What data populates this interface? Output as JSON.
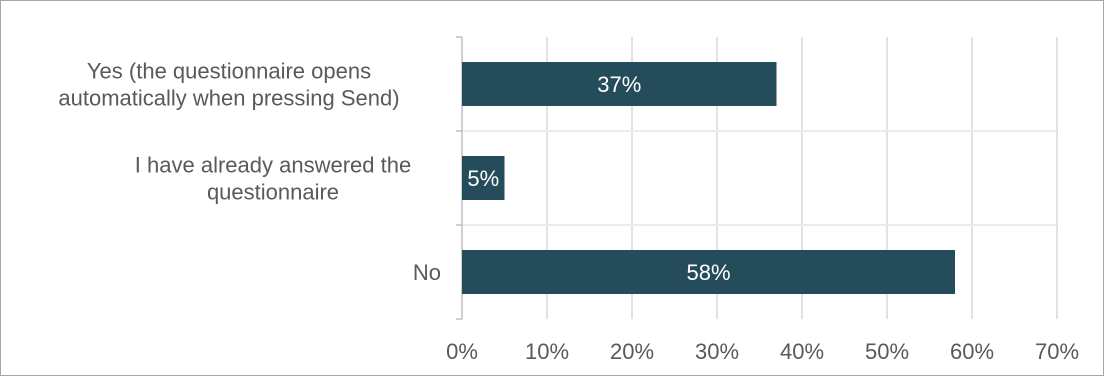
{
  "chart_data": {
    "type": "bar",
    "orientation": "horizontal",
    "categories": [
      [
        "Yes (the questionnaire opens",
        "automatically when pressing Send)"
      ],
      [
        "I have already answered the",
        "questionnaire"
      ],
      [
        "No"
      ]
    ],
    "values": [
      37,
      5,
      58
    ],
    "data_labels": [
      "37%",
      "5%",
      "58%"
    ],
    "xlim": [
      0,
      70
    ],
    "x_ticks": [
      0,
      10,
      20,
      30,
      40,
      50,
      60,
      70
    ],
    "x_tick_labels": [
      "0%",
      "10%",
      "20%",
      "30%",
      "40%",
      "50%",
      "60%",
      "70%"
    ],
    "title": "",
    "xlabel": "",
    "ylabel": "",
    "grid": "vertical",
    "legend": "none",
    "bar_color": "#244c5a",
    "grid_color": "#d9d9d9",
    "text_color": "#595959"
  }
}
